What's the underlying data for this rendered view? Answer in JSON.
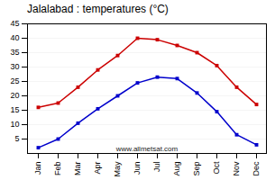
{
  "chart_data": {
    "type": "line",
    "title": "Jalalabad : temperatures (°C)",
    "categories": [
      "Jan",
      "Feb",
      "Mar",
      "Apr",
      "May",
      "Jun",
      "Jul",
      "Aug",
      "Sep",
      "Oct",
      "Nov",
      "Dec"
    ],
    "series": [
      {
        "color": "#cc0000",
        "values": [
          16,
          17.5,
          23,
          29,
          34,
          40,
          39.5,
          37.5,
          35,
          30.5,
          23,
          17
        ]
      },
      {
        "color": "#0000cc",
        "values": [
          2,
          5,
          10.5,
          15.5,
          20,
          24.5,
          26.5,
          26,
          21,
          14.5,
          6.5,
          3
        ]
      }
    ],
    "ylim": [
      0,
      45
    ],
    "yticks": [
      5,
      10,
      15,
      20,
      25,
      30,
      35,
      40,
      45
    ],
    "grid": true,
    "marker": "square",
    "annotations": [
      "www.allmetsat.com"
    ]
  }
}
